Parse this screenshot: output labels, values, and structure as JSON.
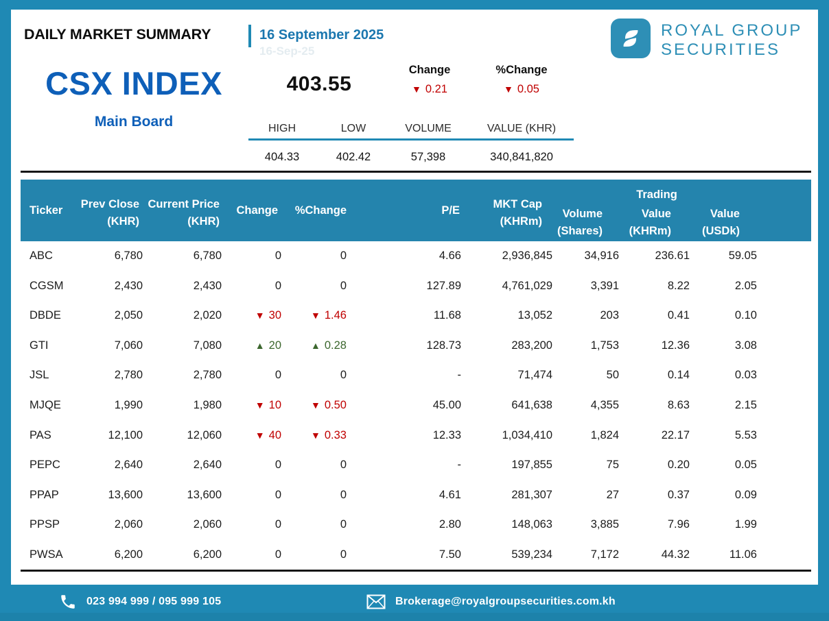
{
  "page": {
    "title": "DAILY MARKET SUMMARY",
    "date": "16 September 2025",
    "date_ghost": "16-Sep-25",
    "brand": {
      "name_line1": "ROYAL GROUP",
      "name_line2": "SECURITIES"
    },
    "colors": {
      "teal": "#1f89b4",
      "table_header_teal": "#2484ad",
      "index_blue": "#0e5fb8",
      "date_blue": "#1b77af",
      "logo_teal": "#2e8fb6",
      "down_red": "#c00000",
      "up_green": "#3c672e"
    }
  },
  "glyphs": {
    "down_arrow": "▼",
    "up_arrow": "▲"
  },
  "index": {
    "name": "CSX INDEX",
    "board": "Main Board",
    "value": "403.55",
    "change": {
      "label": "Change",
      "direction": "down",
      "value": "0.21"
    },
    "pct_change": {
      "label": "%Change",
      "direction": "down",
      "value": "0.05"
    },
    "stats": [
      {
        "label": "HIGH",
        "value": "404.33"
      },
      {
        "label": "LOW",
        "value": "402.42"
      },
      {
        "label": "VOLUME",
        "value": "57,398"
      },
      {
        "label": "VALUE (KHR)",
        "value": "340,841,820"
      }
    ]
  },
  "table": {
    "columns": {
      "ticker": "Ticker",
      "prev_close": [
        "Prev Close",
        "(KHR)"
      ],
      "current_price": [
        "Current Price",
        "(KHR)"
      ],
      "change": "Change",
      "pct_change": "%Change",
      "pe": "P/E",
      "mkt_cap": [
        "MKT Cap",
        "(KHRm)"
      ],
      "trading_group": "Trading",
      "volume": [
        "Volume",
        "(Shares)"
      ],
      "value_khrm": [
        "Value",
        "(KHRm)"
      ],
      "value_usdk": [
        "Value",
        "(USDk)"
      ]
    },
    "rows": [
      {
        "ticker": "ABC",
        "prev_close": "6,780",
        "current_price": "6,780",
        "change": {
          "dir": "flat",
          "value": "0"
        },
        "pct_change": {
          "dir": "flat",
          "value": "0"
        },
        "pe": "4.66",
        "mkt_cap": "2,936,845",
        "volume": "34,916",
        "value_khrm": "236.61",
        "value_usdk": "59.05"
      },
      {
        "ticker": "CGSM",
        "prev_close": "2,430",
        "current_price": "2,430",
        "change": {
          "dir": "flat",
          "value": "0"
        },
        "pct_change": {
          "dir": "flat",
          "value": "0"
        },
        "pe": "127.89",
        "mkt_cap": "4,761,029",
        "volume": "3,391",
        "value_khrm": "8.22",
        "value_usdk": "2.05"
      },
      {
        "ticker": "DBDE",
        "prev_close": "2,050",
        "current_price": "2,020",
        "change": {
          "dir": "down",
          "value": "30"
        },
        "pct_change": {
          "dir": "down",
          "value": "1.46"
        },
        "pe": "11.68",
        "mkt_cap": "13,052",
        "volume": "203",
        "value_khrm": "0.41",
        "value_usdk": "0.10"
      },
      {
        "ticker": "GTI",
        "prev_close": "7,060",
        "current_price": "7,080",
        "change": {
          "dir": "up",
          "value": "20"
        },
        "pct_change": {
          "dir": "up",
          "value": "0.28"
        },
        "pe": "128.73",
        "mkt_cap": "283,200",
        "volume": "1,753",
        "value_khrm": "12.36",
        "value_usdk": "3.08"
      },
      {
        "ticker": "JSL",
        "prev_close": "2,780",
        "current_price": "2,780",
        "change": {
          "dir": "flat",
          "value": "0"
        },
        "pct_change": {
          "dir": "flat",
          "value": "0"
        },
        "pe": "-",
        "mkt_cap": "71,474",
        "volume": "50",
        "value_khrm": "0.14",
        "value_usdk": "0.03"
      },
      {
        "ticker": "MJQE",
        "prev_close": "1,990",
        "current_price": "1,980",
        "change": {
          "dir": "down",
          "value": "10"
        },
        "pct_change": {
          "dir": "down",
          "value": "0.50"
        },
        "pe": "45.00",
        "mkt_cap": "641,638",
        "volume": "4,355",
        "value_khrm": "8.63",
        "value_usdk": "2.15"
      },
      {
        "ticker": "PAS",
        "prev_close": "12,100",
        "current_price": "12,060",
        "change": {
          "dir": "down",
          "value": "40"
        },
        "pct_change": {
          "dir": "down",
          "value": "0.33"
        },
        "pe": "12.33",
        "mkt_cap": "1,034,410",
        "volume": "1,824",
        "value_khrm": "22.17",
        "value_usdk": "5.53"
      },
      {
        "ticker": "PEPC",
        "prev_close": "2,640",
        "current_price": "2,640",
        "change": {
          "dir": "flat",
          "value": "0"
        },
        "pct_change": {
          "dir": "flat",
          "value": "0"
        },
        "pe": "-",
        "mkt_cap": "197,855",
        "volume": "75",
        "value_khrm": "0.20",
        "value_usdk": "0.05"
      },
      {
        "ticker": "PPAP",
        "prev_close": "13,600",
        "current_price": "13,600",
        "change": {
          "dir": "flat",
          "value": "0"
        },
        "pct_change": {
          "dir": "flat",
          "value": "0"
        },
        "pe": "4.61",
        "mkt_cap": "281,307",
        "volume": "27",
        "value_khrm": "0.37",
        "value_usdk": "0.09"
      },
      {
        "ticker": "PPSP",
        "prev_close": "2,060",
        "current_price": "2,060",
        "change": {
          "dir": "flat",
          "value": "0"
        },
        "pct_change": {
          "dir": "flat",
          "value": "0"
        },
        "pe": "2.80",
        "mkt_cap": "148,063",
        "volume": "3,885",
        "value_khrm": "7.96",
        "value_usdk": "1.99"
      },
      {
        "ticker": "PWSA",
        "prev_close": "6,200",
        "current_price": "6,200",
        "change": {
          "dir": "flat",
          "value": "0"
        },
        "pct_change": {
          "dir": "flat",
          "value": "0"
        },
        "pe": "7.50",
        "mkt_cap": "539,234",
        "volume": "7,172",
        "value_khrm": "44.32",
        "value_usdk": "11.06"
      }
    ]
  },
  "footer": {
    "phone": "023 994 999 / 095 999 105",
    "email": "Brokerage@royalgroupsecurities.com.kh"
  }
}
